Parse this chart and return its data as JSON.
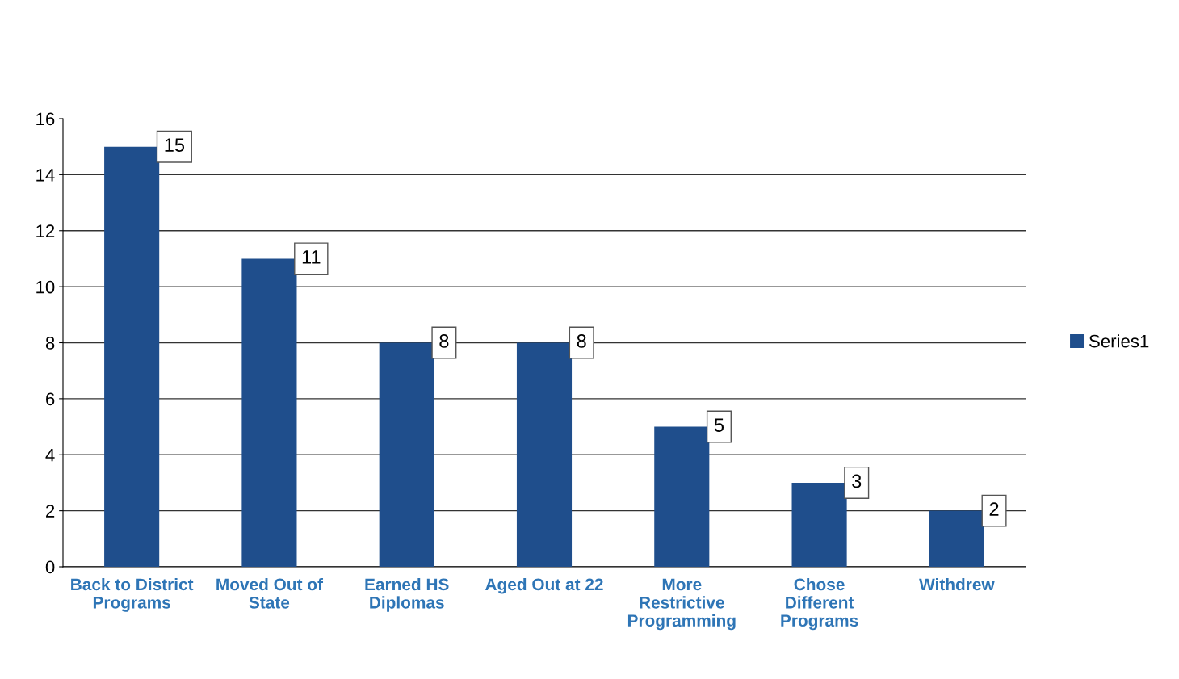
{
  "chart_data": {
    "type": "bar",
    "categories": [
      "Back to District\nPrograms",
      "Moved Out of\nState",
      "Earned HS\nDiplomas",
      "Aged Out at 22",
      "More\nRestrictive\nProgramming",
      "Chose\nDifferent\nPrograms",
      "Withdrew"
    ],
    "series": [
      {
        "name": "Series1",
        "color": "#1f4e8c",
        "values": [
          15,
          11,
          8,
          8,
          5,
          3,
          2
        ]
      }
    ],
    "ylim": [
      0,
      16
    ],
    "yticks": [
      0,
      2,
      4,
      6,
      8,
      10,
      12,
      14,
      16
    ],
    "grid": "y",
    "legend": "right",
    "data_labels": true
  }
}
